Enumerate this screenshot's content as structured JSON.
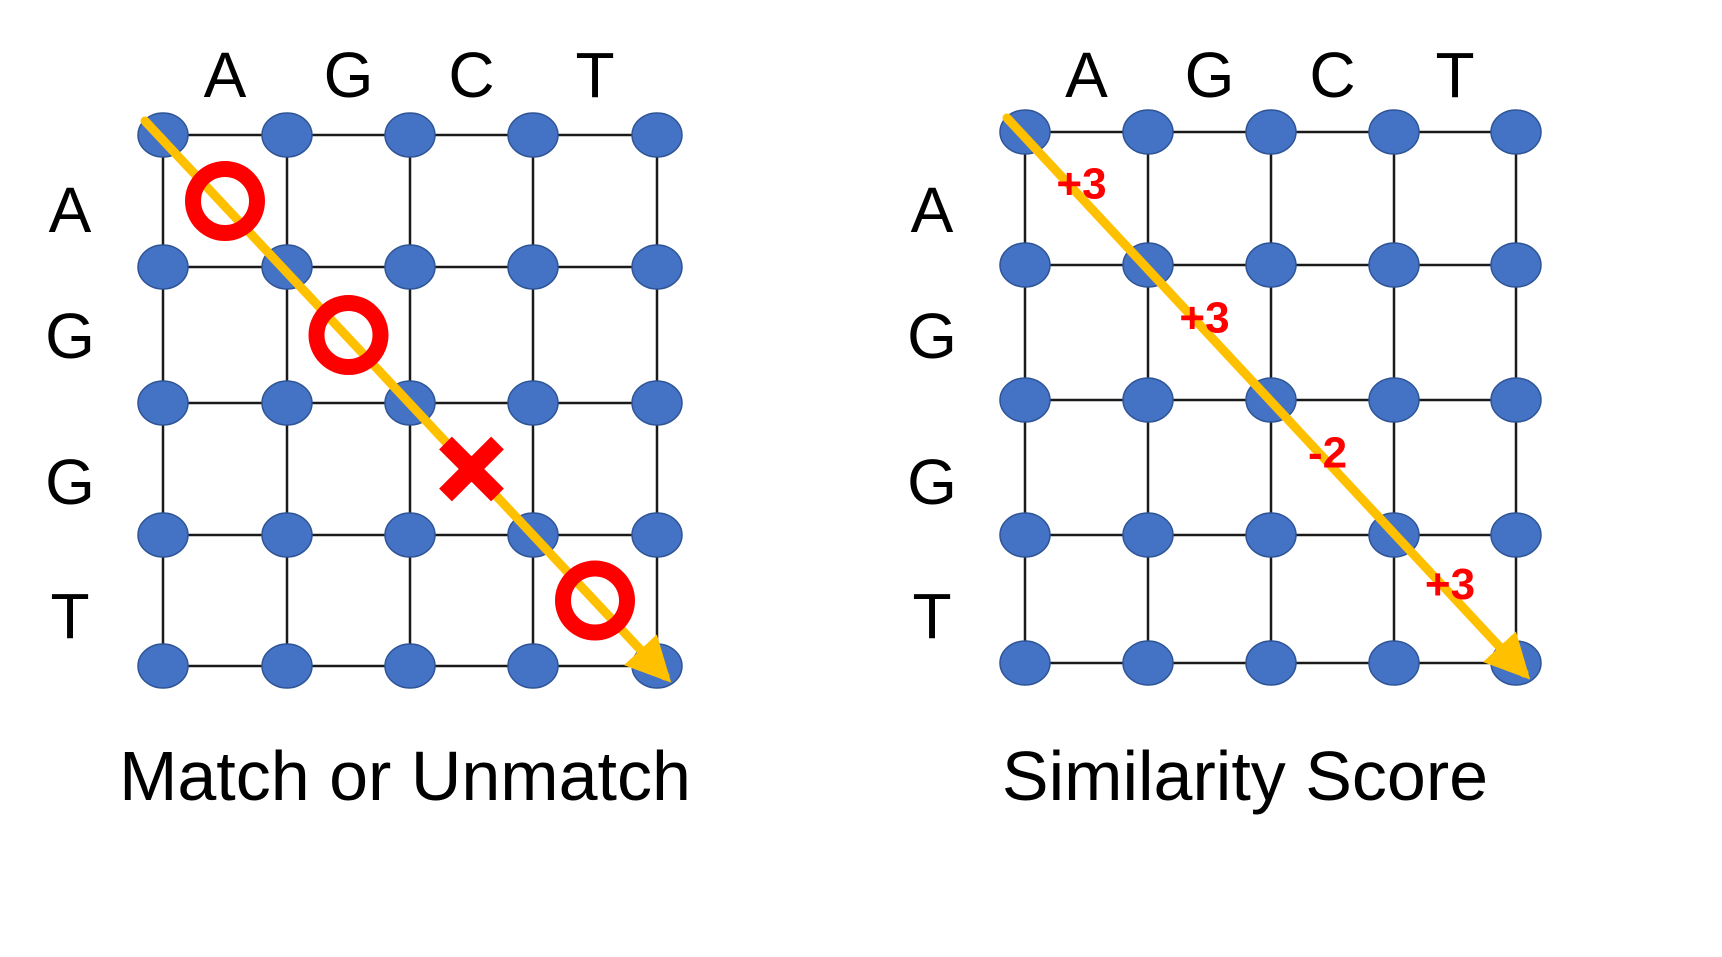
{
  "colors": {
    "node": "#4472c4",
    "node_stroke": "#2f5597",
    "grid": "#1a1a1a",
    "arrow": "#ffc000",
    "mark": "#ff0000"
  },
  "panels": [
    {
      "id": "match",
      "caption": "Match or Unmatch",
      "columns": [
        "A",
        "G",
        "C",
        "T"
      ],
      "rows": [
        "A",
        "G",
        "G",
        "T"
      ],
      "marks": [
        {
          "step": 1,
          "type": "match",
          "icon": "circle-icon"
        },
        {
          "step": 2,
          "type": "match",
          "icon": "circle-icon"
        },
        {
          "step": 3,
          "type": "mismatch",
          "icon": "cross-icon"
        },
        {
          "step": 4,
          "type": "match",
          "icon": "circle-icon"
        }
      ]
    },
    {
      "id": "score",
      "caption": "Similarity Score",
      "columns": [
        "A",
        "G",
        "C",
        "T"
      ],
      "rows": [
        "A",
        "G",
        "G",
        "T"
      ],
      "scores": [
        {
          "step": 1,
          "label": "+3"
        },
        {
          "step": 2,
          "label": "+3"
        },
        {
          "step": 3,
          "label": "-2"
        },
        {
          "step": 4,
          "label": "+3"
        }
      ]
    }
  ]
}
